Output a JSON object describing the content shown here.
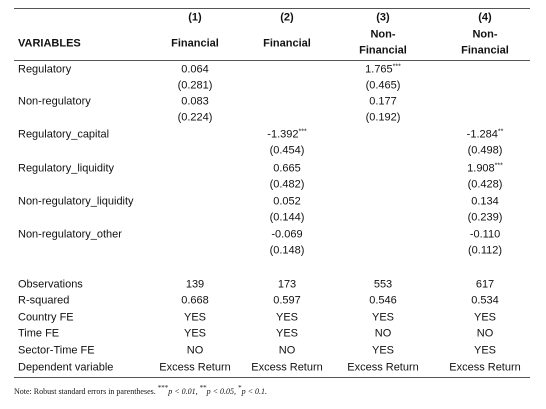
{
  "header": {
    "col_numbers": [
      "(1)",
      "(2)",
      "(3)",
      "(4)"
    ],
    "variables_label": "VARIABLES",
    "col_names": [
      [
        "Financial"
      ],
      [
        "Financial"
      ],
      [
        "Non-",
        "Financial"
      ],
      [
        "Non-",
        "Financial"
      ]
    ]
  },
  "coef_rows": [
    {
      "label": "Regulatory",
      "coefs": [
        {
          "value": "0.064",
          "stars": null
        },
        null,
        {
          "value": "1.765",
          "stars": "***"
        },
        null
      ],
      "ses": [
        "(0.281)",
        null,
        "(0.465)",
        null
      ]
    },
    {
      "label": "Non-regulatory",
      "coefs": [
        {
          "value": "0.083",
          "stars": null
        },
        null,
        {
          "value": "0.177",
          "stars": null
        },
        null
      ],
      "ses": [
        "(0.224)",
        null,
        "(0.192)",
        null
      ]
    },
    {
      "label": "Regulatory_capital",
      "coefs": [
        null,
        {
          "value": "-1.392",
          "stars": "***"
        },
        null,
        {
          "value": "-1.284",
          "stars": "**"
        }
      ],
      "ses": [
        null,
        "(0.454)",
        null,
        "(0.498)"
      ]
    },
    {
      "label": "Regulatory_liquidity",
      "coefs": [
        null,
        {
          "value": "0.665",
          "stars": null
        },
        null,
        {
          "value": "1.908",
          "stars": "***"
        }
      ],
      "ses": [
        null,
        "(0.482)",
        null,
        "(0.428)"
      ]
    },
    {
      "label": "Non-regulatory_liquidity",
      "coefs": [
        null,
        {
          "value": "0.052",
          "stars": null
        },
        null,
        {
          "value": "0.134",
          "stars": null
        }
      ],
      "ses": [
        null,
        "(0.144)",
        null,
        "(0.239)"
      ]
    },
    {
      "label": "Non-regulatory_other",
      "coefs": [
        null,
        {
          "value": "-0.069",
          "stars": null
        },
        null,
        {
          "value": "-0.110",
          "stars": null
        }
      ],
      "ses": [
        null,
        "(0.148)",
        null,
        "(0.112)"
      ]
    }
  ],
  "stat_rows": [
    {
      "label": "Observations",
      "cells": [
        "139",
        "173",
        "553",
        "617"
      ]
    },
    {
      "label": "R-squared",
      "cells": [
        "0.668",
        "0.597",
        "0.546",
        "0.534"
      ]
    },
    {
      "label": "Country FE",
      "cells": [
        "YES",
        "YES",
        "YES",
        "YES"
      ]
    },
    {
      "label": "Time FE",
      "cells": [
        "YES",
        "YES",
        "NO",
        "NO"
      ]
    },
    {
      "label": "Sector-Time FE",
      "cells": [
        "NO",
        "NO",
        "YES",
        "YES"
      ]
    },
    {
      "label": "Dependent variable",
      "cells": [
        "Excess Return",
        "Excess Return",
        "Excess Return",
        "Excess Return"
      ]
    }
  ],
  "note": {
    "prefix": "Note: Robust standard errors in parentheses.",
    "thresholds": [
      {
        "stars": "***",
        "text": "p < 0.01,"
      },
      {
        "stars": "**",
        "text": "p < 0.05,"
      },
      {
        "stars": "*",
        "text": "p < 0.1."
      }
    ]
  }
}
